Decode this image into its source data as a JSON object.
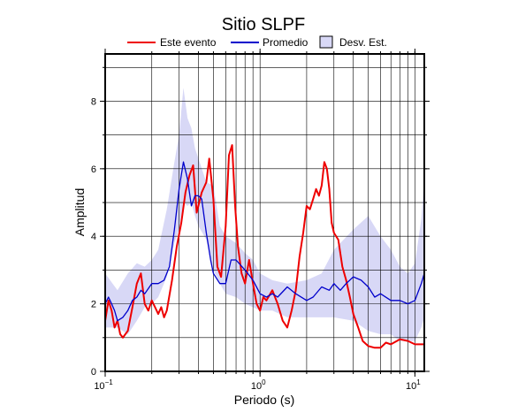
{
  "chart_data": {
    "type": "line",
    "title": "Sitio SLPF",
    "xlabel": "Periodo (s)",
    "ylabel": "Amplitud",
    "x_scale": "log",
    "xlim": [
      0.1,
      11.5
    ],
    "ylim": [
      0,
      9.4
    ],
    "x_ticks": [
      {
        "value": 0.1,
        "base": "10",
        "exp": "−1"
      },
      {
        "value": 1,
        "base": "10",
        "exp": "0"
      },
      {
        "value": 10,
        "base": "10",
        "exp": "1"
      }
    ],
    "y_ticks": [
      0,
      2,
      4,
      6,
      8
    ],
    "grid": true,
    "legend": [
      {
        "label": "Este evento",
        "color": "#ee0000",
        "kind": "line"
      },
      {
        "label": "Promedio",
        "color": "#0000cc",
        "kind": "line"
      },
      {
        "label": "Desv. Est.",
        "color": "#d8d8f6",
        "kind": "patch"
      }
    ],
    "band": {
      "name": "Desv. Est.",
      "color": "#d8d8f6",
      "x": [
        0.1,
        0.12,
        0.14,
        0.16,
        0.18,
        0.2,
        0.22,
        0.25,
        0.28,
        0.3,
        0.32,
        0.34,
        0.36,
        0.38,
        0.4,
        0.45,
        0.5,
        0.55,
        0.6,
        0.7,
        0.8,
        0.9,
        1.0,
        1.2,
        1.5,
        2.0,
        2.5,
        3.0,
        4.0,
        5.0,
        6.0,
        7.0,
        8.0,
        9.0,
        10.0,
        11.0,
        11.5
      ],
      "upper": [
        2.9,
        2.4,
        2.9,
        3.2,
        3.1,
        3.3,
        3.6,
        4.8,
        6.2,
        7.0,
        8.4,
        7.5,
        7.2,
        6.6,
        6.3,
        5.6,
        5.5,
        4.3,
        4.0,
        3.8,
        3.5,
        3.3,
        2.9,
        2.7,
        2.6,
        2.7,
        2.9,
        3.6,
        4.2,
        4.6,
        4.0,
        3.6,
        3.1,
        2.9,
        3.2,
        4.5,
        5.8
      ],
      "lower": [
        1.3,
        1.3,
        1.1,
        1.5,
        1.9,
        2.0,
        2.2,
        2.8,
        3.8,
        4.2,
        5.0,
        4.9,
        5.0,
        4.6,
        4.3,
        3.9,
        3.0,
        2.6,
        2.3,
        2.2,
        2.0,
        1.9,
        1.8,
        1.8,
        1.6,
        1.6,
        1.6,
        1.6,
        1.5,
        1.2,
        1.1,
        1.1,
        0.9,
        0.9,
        0.9,
        1.3,
        1.6
      ]
    },
    "series": [
      {
        "name": "Este evento",
        "color": "#ee0000",
        "x": [
          0.1,
          0.105,
          0.11,
          0.115,
          0.12,
          0.125,
          0.13,
          0.135,
          0.14,
          0.15,
          0.16,
          0.17,
          0.18,
          0.19,
          0.2,
          0.21,
          0.22,
          0.23,
          0.24,
          0.25,
          0.27,
          0.29,
          0.31,
          0.33,
          0.35,
          0.37,
          0.39,
          0.42,
          0.45,
          0.47,
          0.5,
          0.53,
          0.56,
          0.6,
          0.63,
          0.66,
          0.69,
          0.72,
          0.76,
          0.8,
          0.85,
          0.9,
          0.95,
          1.0,
          1.05,
          1.1,
          1.2,
          1.3,
          1.4,
          1.5,
          1.6,
          1.7,
          1.8,
          1.9,
          2.0,
          2.1,
          2.2,
          2.3,
          2.4,
          2.5,
          2.6,
          2.7,
          2.8,
          2.9,
          3.0,
          3.2,
          3.4,
          3.6,
          3.8,
          4.0,
          4.3,
          4.6,
          5.0,
          5.5,
          6.0,
          6.5,
          7.0,
          8.0,
          9.0,
          10.0,
          11.0,
          11.5
        ],
        "y": [
          1.5,
          2.1,
          1.8,
          1.3,
          1.5,
          1.1,
          1.0,
          1.1,
          1.2,
          1.9,
          2.6,
          2.9,
          2.0,
          1.8,
          2.1,
          1.9,
          1.7,
          1.9,
          1.6,
          1.8,
          2.7,
          3.7,
          4.4,
          5.3,
          5.8,
          6.1,
          4.7,
          5.3,
          5.6,
          6.3,
          5.1,
          3.1,
          2.8,
          4.3,
          6.4,
          6.7,
          4.9,
          3.7,
          2.9,
          2.6,
          3.3,
          2.6,
          2.0,
          1.8,
          2.2,
          2.1,
          2.4,
          2.0,
          1.5,
          1.3,
          1.8,
          2.4,
          3.4,
          4.1,
          4.9,
          4.8,
          5.1,
          5.4,
          5.2,
          5.5,
          6.2,
          6.0,
          5.4,
          4.4,
          4.1,
          3.9,
          3.1,
          2.7,
          2.2,
          1.7,
          1.3,
          0.9,
          0.75,
          0.7,
          0.7,
          0.85,
          0.8,
          0.95,
          0.9,
          0.8,
          0.8,
          0.8
        ]
      },
      {
        "name": "Promedio",
        "color": "#0000cc",
        "x": [
          0.1,
          0.105,
          0.11,
          0.115,
          0.12,
          0.13,
          0.14,
          0.15,
          0.16,
          0.17,
          0.18,
          0.2,
          0.22,
          0.24,
          0.26,
          0.28,
          0.3,
          0.32,
          0.34,
          0.36,
          0.38,
          0.4,
          0.42,
          0.45,
          0.48,
          0.5,
          0.55,
          0.6,
          0.65,
          0.7,
          0.8,
          0.9,
          1.0,
          1.1,
          1.2,
          1.3,
          1.5,
          1.7,
          2.0,
          2.2,
          2.5,
          2.8,
          3.0,
          3.3,
          3.6,
          4.0,
          4.5,
          5.0,
          5.5,
          6.0,
          7.0,
          8.0,
          9.0,
          10.0,
          11.0,
          11.5
        ],
        "y": [
          2.0,
          2.2,
          2.0,
          1.8,
          1.5,
          1.6,
          1.8,
          2.1,
          2.2,
          2.4,
          2.3,
          2.6,
          2.6,
          2.7,
          3.1,
          4.2,
          5.4,
          6.2,
          5.7,
          4.9,
          5.2,
          5.2,
          5.1,
          4.1,
          3.3,
          2.9,
          2.6,
          2.6,
          3.3,
          3.3,
          3.0,
          2.7,
          2.3,
          2.2,
          2.3,
          2.2,
          2.5,
          2.3,
          2.1,
          2.2,
          2.5,
          2.4,
          2.6,
          2.4,
          2.6,
          2.8,
          2.7,
          2.5,
          2.2,
          2.3,
          2.1,
          2.1,
          2.0,
          2.1,
          2.6,
          2.9
        ]
      }
    ]
  }
}
